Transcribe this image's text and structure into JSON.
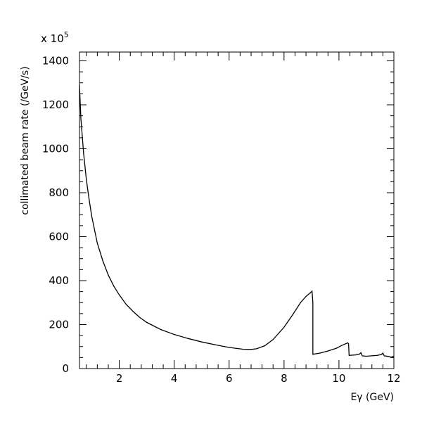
{
  "chart_data": {
    "type": "line",
    "title": "",
    "xlabel": "Eγ (GeV)",
    "ylabel": "collimated beam rate (/GeV/s)",
    "y_multiplier": "x 10",
    "y_multiplier_exponent": "5",
    "xlim": [
      0.55,
      12
    ],
    "ylim": [
      0,
      1440
    ],
    "x_ticks": [
      2,
      4,
      6,
      8,
      10,
      12
    ],
    "x_tick_labels": [
      "2",
      "4",
      "6",
      "8",
      "10",
      "12"
    ],
    "y_ticks": [
      0,
      200,
      400,
      600,
      800,
      1000,
      1200,
      1400
    ],
    "y_tick_labels": [
      "0",
      "200",
      "400",
      "600",
      "800",
      "1000",
      "1200",
      "1400"
    ],
    "grid": false,
    "legend": "none",
    "color": "#000000",
    "series": [
      {
        "x": [
          0.55,
          0.6,
          0.7,
          0.8,
          0.9,
          1.0,
          1.2,
          1.4,
          1.6,
          1.8,
          2.0,
          2.25,
          2.5,
          2.75,
          3.0,
          3.5,
          4.0,
          4.5,
          5.0,
          5.5,
          6.0,
          6.5,
          6.8,
          7.0,
          7.3,
          7.6,
          8.0,
          8.3,
          8.6,
          8.8,
          8.95,
          9.02,
          9.05,
          9.05,
          9.3,
          9.6,
          9.9,
          10.1,
          10.25,
          10.32,
          10.35,
          10.37,
          10.6,
          10.75,
          10.8,
          10.85,
          11.0,
          11.2,
          11.4,
          11.55,
          11.6,
          11.65,
          11.8,
          11.9,
          12.0
        ],
        "y": [
          1290,
          1140,
          980,
          860,
          770,
          690,
          570,
          490,
          425,
          375,
          335,
          292,
          260,
          232,
          210,
          178,
          155,
          137,
          121,
          108,
          96,
          88,
          87,
          90,
          104,
          132,
          188,
          242,
          300,
          328,
          344,
          352,
          300,
          65,
          70,
          80,
          92,
          105,
          113,
          117,
          112,
          60,
          62,
          66,
          72,
          58,
          56,
          58,
          60,
          64,
          70,
          58,
          55,
          52,
          56
        ]
      }
    ]
  }
}
